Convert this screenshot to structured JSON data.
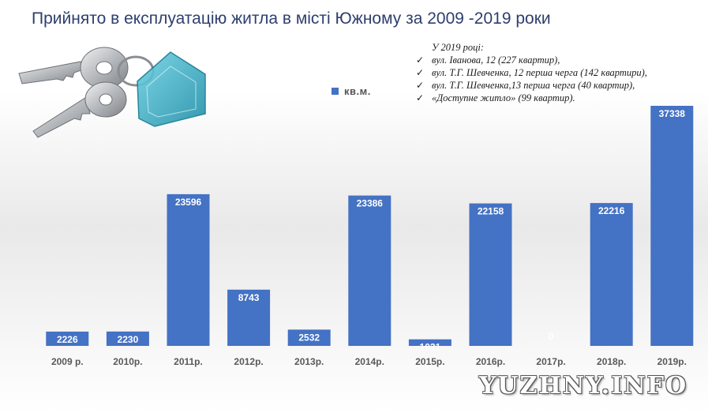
{
  "title": "Прийнято в експлуатацію житла в місті Южному за 2009 -2019 роки",
  "legend": {
    "label": "кв.м.",
    "color": "#4472c4"
  },
  "note": {
    "heading": "У 2019 році:",
    "items": [
      "вул. Іванова, 12 (227 квартир),",
      "вул. Т.Г. Шевченка, 12 перша черга (142 квартири),",
      "вул. Т.Г. Шевченка,13 перша черга (40 квартир),",
      "«Доступне житло»  (99 квартир)."
    ]
  },
  "watermark": "YUZHNY.INFO",
  "chart_data": {
    "type": "bar",
    "categories": [
      "2009 р.",
      "2010р.",
      "2011р.",
      "2012р.",
      "2013р.",
      "2014р.",
      "2015р.",
      "2016р.",
      "2017р.",
      "2018р.",
      "2019р."
    ],
    "series": [
      {
        "name": "кв.м.",
        "values": [
          2226,
          2230,
          23596,
          8743,
          2532,
          23386,
          1021,
          22158,
          0,
          22216,
          37338
        ]
      }
    ],
    "data_labels": [
      "2226",
      "2230",
      "23596",
      "8743",
      "2532",
      "23386",
      "1021",
      "22158",
      "0",
      "22216",
      "37338"
    ],
    "bar_color": "#4472c4",
    "ylim": [
      0,
      37338
    ],
    "grid": false,
    "legend_position": "top"
  }
}
